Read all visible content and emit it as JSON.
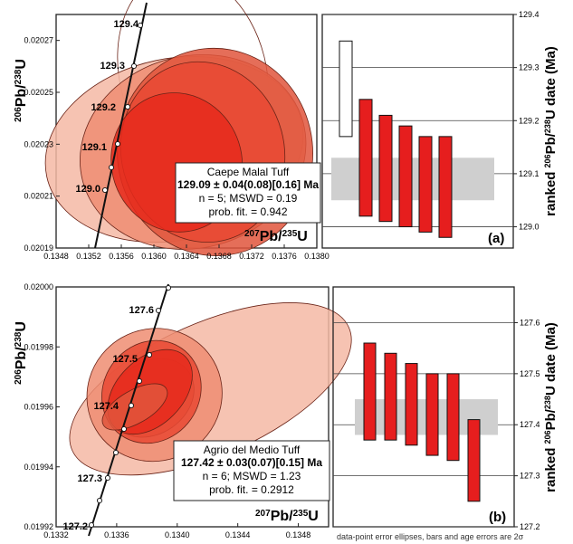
{
  "figure_note": "data-point error ellipses, bars and age errors are 2σ",
  "chart_data": [
    {
      "type": "scatter",
      "panel": "a-concordia",
      "xlabel_main": "207Pb/235U",
      "ylabel_main": "206Pb/238U",
      "xlim": [
        0.1348,
        0.138
      ],
      "ylim": [
        0.02019,
        0.02028
      ],
      "x_ticks": [
        "0.1348",
        "0.1352",
        "0.1356",
        "0.1360",
        "0.1364",
        "0.1368",
        "0.1372",
        "0.1376",
        "0.1380"
      ],
      "y_ticks": [
        "0.02019",
        "0.02021",
        "0.02023",
        "0.02025",
        "0.02027"
      ],
      "concordia_labels": [
        "129.0",
        "129.1",
        "129.2",
        "129.3",
        "129.4"
      ],
      "ellipses": [
        {
          "cx": 0.13648,
          "cy": 0.020257,
          "rx": 0.0009,
          "ry": 4e-05,
          "rot": -14,
          "color": "#ffffff"
        },
        {
          "cx": 0.13625,
          "cy": 0.020228,
          "rx": 0.0016,
          "ry": 3.5e-05,
          "rot": -12,
          "color": "#f5b9a4"
        },
        {
          "cx": 0.13648,
          "cy": 0.020227,
          "rx": 0.0014,
          "ry": 3.7e-05,
          "rot": -15,
          "color": "#ef8d72"
        },
        {
          "cx": 0.13675,
          "cy": 0.020227,
          "rx": 0.0012,
          "ry": 4e-05,
          "rot": -6,
          "color": "#e0553c"
        },
        {
          "cx": 0.1366,
          "cy": 0.020227,
          "rx": 0.001,
          "ry": 3.5e-05,
          "rot": -15,
          "color": "#e94934"
        },
        {
          "cx": 0.13628,
          "cy": 0.020223,
          "rx": 0.0008,
          "ry": 2.7e-05,
          "rot": -18,
          "color": "#e62a1c"
        }
      ],
      "box": {
        "title": "Caepe Malal Tuff",
        "age": "129.09 ± 0.04(0.08)[0.16] Ma",
        "stats": "n = 5; MSWD = 0.19",
        "prob": "prob. fit. = 0.942"
      }
    },
    {
      "type": "bar",
      "panel": "a-ranked",
      "tag": "(a)",
      "ylabel": "ranked 206Pb/238U date (Ma)",
      "ylim": [
        128.96,
        129.4
      ],
      "y_ticks": [
        "129.0",
        "129.1",
        "129.2",
        "129.3",
        "129.4"
      ],
      "mean_band": [
        129.05,
        129.13
      ],
      "bars": [
        {
          "lo": 129.17,
          "hi": 129.35,
          "fill": "#ffffff"
        },
        {
          "lo": 129.02,
          "hi": 129.24,
          "fill": "#e61e1e"
        },
        {
          "lo": 129.01,
          "hi": 129.21,
          "fill": "#e61e1e"
        },
        {
          "lo": 129.0,
          "hi": 129.19,
          "fill": "#e61e1e"
        },
        {
          "lo": 128.99,
          "hi": 129.17,
          "fill": "#e61e1e"
        },
        {
          "lo": 128.98,
          "hi": 129.17,
          "fill": "#e61e1e"
        }
      ]
    },
    {
      "type": "scatter",
      "panel": "b-concordia",
      "xlabel_main": "207Pb/235U",
      "ylabel_main": "206Pb/238U",
      "xlim": [
        0.1332,
        0.135
      ],
      "ylim": [
        0.01992,
        0.02
      ],
      "x_ticks": [
        "0.1332",
        "0.1336",
        "0.1340",
        "0.1344",
        "0.1348"
      ],
      "y_ticks": [
        "0.01992",
        "0.01994",
        "0.01996",
        "0.01998",
        "0.02000"
      ],
      "concordia_labels": [
        "127.2",
        "127.3",
        "127.4",
        "127.5",
        "127.6"
      ],
      "ellipses": [
        {
          "cx": 0.13422,
          "cy": 0.019966,
          "rx": 0.001,
          "ry": 2.2e-05,
          "rot": -24,
          "color": "#f5b9a4"
        },
        {
          "cx": 0.13385,
          "cy": 0.019964,
          "rx": 0.00045,
          "ry": 2.2e-05,
          "rot": -30,
          "color": "#ef8d72"
        },
        {
          "cx": 0.13383,
          "cy": 0.019963,
          "rx": 0.0003,
          "ry": 1.2e-05,
          "rot": -35,
          "color": "#e0553c"
        },
        {
          "cx": 0.13383,
          "cy": 0.019965,
          "rx": 0.00035,
          "ry": 1.6e-05,
          "rot": -55,
          "color": "#e94934"
        },
        {
          "cx": 0.13382,
          "cy": 0.019965,
          "rx": 0.00033,
          "ry": 1.1e-05,
          "rot": -45,
          "color": "#e62a1c"
        },
        {
          "cx": 0.13372,
          "cy": 0.01996,
          "rx": 0.00024,
          "ry": 5.5e-06,
          "rot": -30,
          "color": "#e0553c"
        }
      ],
      "box": {
        "title": "Agrio del Medio Tuff",
        "age": "127.42 ± 0.03(0.07)[0.15] Ma",
        "stats": "n = 6; MSWD = 1.23",
        "prob": "prob. fit. = 0.2912"
      }
    },
    {
      "type": "bar",
      "panel": "b-ranked",
      "tag": "(b)",
      "ylabel": "ranked 206Pb/238U date (Ma)",
      "ylim": [
        127.2,
        127.67
      ],
      "y_ticks": [
        "127.2",
        "127.3",
        "127.4",
        "127.5",
        "127.6"
      ],
      "mean_band": [
        127.38,
        127.45
      ],
      "bars": [
        {
          "lo": 127.37,
          "hi": 127.56,
          "fill": "#e61e1e"
        },
        {
          "lo": 127.37,
          "hi": 127.54,
          "fill": "#e61e1e"
        },
        {
          "lo": 127.36,
          "hi": 127.52,
          "fill": "#e61e1e"
        },
        {
          "lo": 127.34,
          "hi": 127.5,
          "fill": "#e61e1e"
        },
        {
          "lo": 127.33,
          "hi": 127.5,
          "fill": "#e61e1e"
        },
        {
          "lo": 127.25,
          "hi": 127.41,
          "fill": "#e61e1e"
        }
      ]
    }
  ]
}
